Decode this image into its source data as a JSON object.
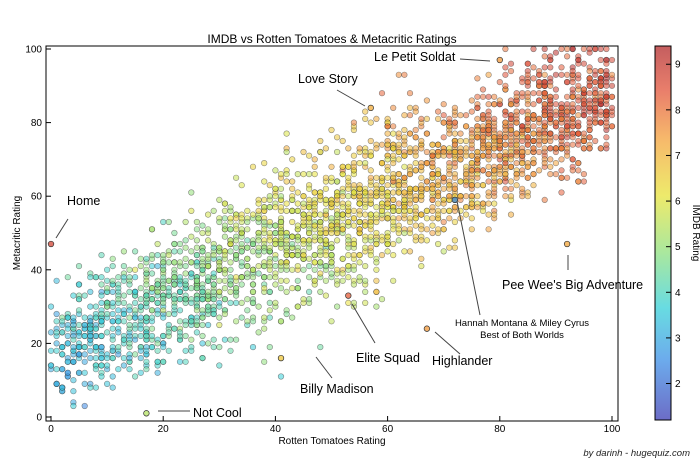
{
  "chart_data": {
    "type": "scatter",
    "title": "IMDB vs Rotten Tomatoes & Metacritic Ratings",
    "xlabel": "Rotten Tomatoes Rating",
    "ylabel": "Metacritic Rating",
    "xlim": [
      0,
      100
    ],
    "ylim": [
      0,
      100
    ],
    "x_ticks": [
      "0",
      "20",
      "40",
      "60",
      "80",
      "100"
    ],
    "y_ticks": [
      "0",
      "20",
      "40",
      "60",
      "80",
      "100"
    ],
    "grid": false,
    "colorbar": {
      "label": "IMDB Rating",
      "range": [
        1.2,
        9.4
      ],
      "ticks": [
        "2",
        "3",
        "4",
        "5",
        "6",
        "7",
        "8",
        "9"
      ],
      "colormap": [
        "#3b3cb4",
        "#3b8fe6",
        "#36d0d8",
        "#8fe07c",
        "#e8e33a",
        "#f4a23a",
        "#e2543a",
        "#b1282a"
      ]
    },
    "trend": {
      "description": "Dense cloud of several thousand films rising from lower-left to upper-right",
      "x_range": [
        0,
        100
      ],
      "metacritic_at_x0": 18,
      "metacritic_at_x100": 88,
      "spread": 10
    },
    "labeled_points": [
      {
        "name": "Home",
        "x": 0,
        "y": 47,
        "imdb": 8.6
      },
      {
        "name": "Not Cool",
        "x": 17,
        "y": 1,
        "imdb": 5.2
      },
      {
        "name": "Love Story",
        "x": 57,
        "y": 84,
        "imdb": 6.9
      },
      {
        "name": "Le Petit Soldat",
        "x": 80,
        "y": 97,
        "imdb": 7.2
      },
      {
        "name": "Billy Madison",
        "x": 41,
        "y": 16,
        "imdb": 6.4
      },
      {
        "name": "Elite Squad",
        "x": 53,
        "y": 33,
        "imdb": 8.1
      },
      {
        "name": "Highlander",
        "x": 67,
        "y": 24,
        "imdb": 7.2
      },
      {
        "name": "Hannah Montana & Miley Cyrus\nBest of Both Worlds",
        "x": 72,
        "y": 59,
        "imdb": 2.2
      },
      {
        "name": "Pee Wee's Big Adventure",
        "x": 92,
        "y": 47,
        "imdb": 7.0
      }
    ],
    "annotations": {
      "home": "Home",
      "not_cool": "Not Cool",
      "love_story": "Love Story",
      "le_petit_soldat": "Le Petit Soldat",
      "billy_madison": "Billy Madison",
      "elite_squad": "Elite Squad",
      "highlander": "Highlander",
      "hannah_line1": "Hannah Montana & Miley Cyrus",
      "hannah_line2": "Best of Both Worlds",
      "pee_wee": "Pee Wee's Big Adventure"
    }
  },
  "credit": "by darinh - hugequiz.com"
}
